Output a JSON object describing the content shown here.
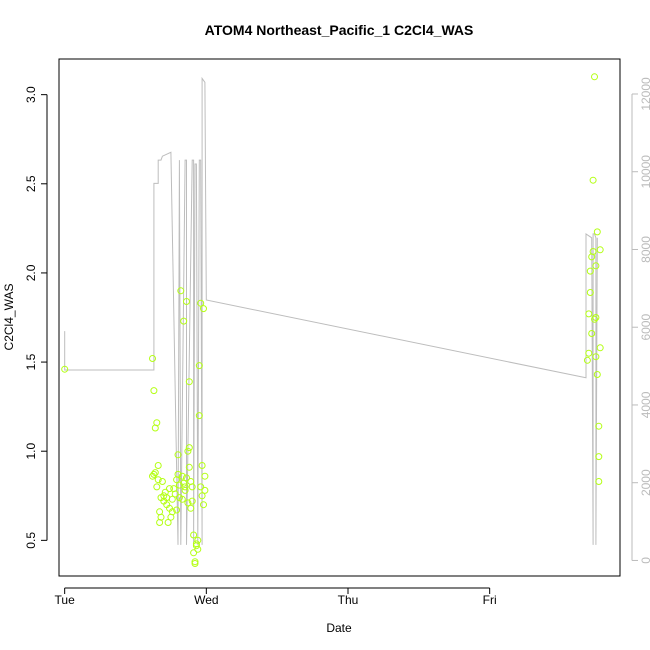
{
  "chart_data": {
    "type": "scatter",
    "title": "ATOM4 Northeast_Pacific_1 C2Cl4_WAS",
    "xlabel": "Date",
    "ylabel": "C2Cl4_WAS",
    "x_unit": "days since Tue 00:00",
    "xlim": [
      -0.04,
      3.92
    ],
    "x_ticks": [
      {
        "value": 0,
        "label": "Tue"
      },
      {
        "value": 1,
        "label": "Wed"
      },
      {
        "value": 2,
        "label": "Thu"
      },
      {
        "value": 3,
        "label": "Fri"
      }
    ],
    "ylim": [
      0.3,
      3.2
    ],
    "y_ticks": [
      0.5,
      1.0,
      1.5,
      2.0,
      2.5,
      3.0
    ],
    "y2lim": [
      -400,
      12900
    ],
    "y2_ticks": [
      0,
      2000,
      4000,
      6000,
      8000,
      10000,
      12000
    ],
    "colors": {
      "points": "#b4ff14",
      "line": "#bdbdbd",
      "axis": "#000000",
      "y2_labels": "#bbbbbb"
    },
    "series": [
      {
        "name": "C2Cl4_WAS",
        "axis": "left",
        "style": "points",
        "x": [
          0.0,
          0.62,
          0.62,
          0.63,
          0.63,
          0.64,
          0.64,
          0.65,
          0.65,
          0.66,
          0.66,
          0.67,
          0.67,
          0.68,
          0.68,
          0.69,
          0.7,
          0.7,
          0.71,
          0.72,
          0.72,
          0.73,
          0.74,
          0.74,
          0.75,
          0.76,
          0.76,
          0.77,
          0.78,
          0.79,
          0.79,
          0.8,
          0.8,
          0.81,
          0.81,
          0.82,
          0.83,
          0.83,
          0.84,
          0.84,
          0.85,
          0.85,
          0.86,
          0.86,
          0.87,
          0.87,
          0.88,
          0.88,
          0.88,
          0.89,
          0.89,
          0.9,
          0.9,
          0.91,
          0.91,
          0.92,
          0.92,
          0.93,
          0.93,
          0.94,
          0.94,
          0.95,
          0.95,
          0.96,
          0.96,
          0.97,
          0.97,
          0.98,
          0.98,
          0.99,
          0.99,
          3.69,
          3.7,
          3.7,
          3.71,
          3.71,
          3.72,
          3.72,
          3.73,
          3.73,
          3.74,
          3.74,
          3.75,
          3.75,
          3.75,
          3.76,
          3.76,
          3.77,
          3.77,
          3.77,
          3.78,
          3.78
        ],
        "y": [
          1.46,
          1.52,
          0.86,
          1.34,
          0.87,
          0.88,
          1.13,
          0.8,
          1.16,
          0.92,
          0.84,
          0.66,
          0.6,
          0.74,
          0.63,
          0.83,
          0.75,
          0.72,
          0.77,
          0.7,
          0.74,
          0.6,
          0.68,
          0.79,
          0.63,
          0.73,
          0.66,
          0.79,
          0.76,
          0.67,
          0.84,
          0.98,
          0.87,
          0.74,
          0.81,
          1.9,
          0.73,
          0.86,
          1.73,
          0.82,
          0.78,
          0.8,
          1.84,
          0.85,
          0.71,
          1.0,
          0.91,
          1.02,
          1.39,
          0.68,
          0.83,
          0.8,
          0.72,
          0.43,
          0.53,
          0.38,
          0.37,
          0.47,
          0.48,
          0.5,
          0.45,
          1.48,
          1.2,
          0.8,
          1.83,
          0.92,
          0.75,
          1.8,
          0.7,
          0.86,
          0.78,
          1.51,
          1.77,
          1.55,
          1.89,
          2.01,
          2.09,
          1.66,
          2.12,
          2.52,
          1.74,
          3.1,
          2.04,
          1.53,
          1.75,
          1.43,
          2.23,
          0.97,
          1.14,
          0.83,
          2.13,
          1.58
        ]
      },
      {
        "name": "",
        "axis": "right",
        "style": "line",
        "x": [
          0.0,
          0.0,
          0.63,
          0.63,
          0.65,
          0.66,
          0.66,
          0.68,
          0.69,
          0.69,
          0.75,
          0.75,
          0.8,
          0.81,
          0.81,
          0.82,
          0.85,
          0.86,
          0.86,
          0.9,
          0.91,
          0.91,
          0.92,
          0.93,
          0.94,
          0.95,
          0.96,
          0.97,
          0.97,
          0.99,
          1.0,
          1.0,
          1.0,
          3.68,
          3.68,
          3.72,
          3.72,
          3.73,
          3.73,
          3.74,
          3.75,
          3.75,
          3.76,
          3.76,
          3.76
        ],
        "y": [
          5900,
          4900,
          4900,
          9700,
          9700,
          9700,
          10300,
          10300,
          10400,
          10400,
          10500,
          10500,
          400,
          10300,
          10300,
          400,
          10300,
          10300,
          400,
          10300,
          10300,
          400,
          10200,
          10200,
          400,
          10300,
          10300,
          400,
          12400,
          12300,
          6700,
          6700,
          6700,
          4700,
          8400,
          8300,
          8300,
          400,
          8400,
          8400,
          8300,
          400,
          8300,
          8200,
          8200
        ]
      }
    ]
  }
}
